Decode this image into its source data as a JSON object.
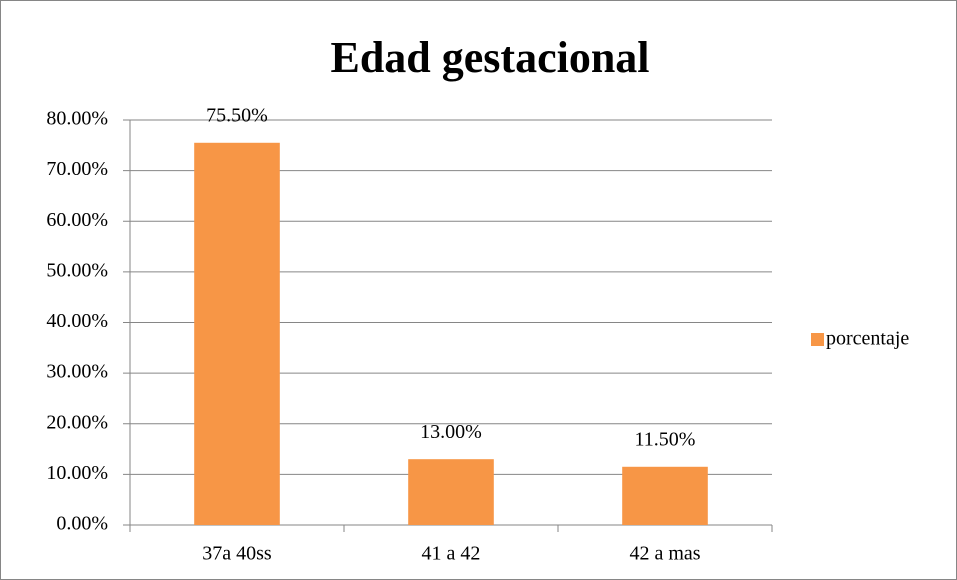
{
  "chart_data": {
    "type": "bar",
    "title": "Edad gestacional",
    "categories": [
      "37a 40ss",
      "41 a 42",
      "42 a mas"
    ],
    "series": [
      {
        "name": "porcentaje",
        "color": "#f79646",
        "values": [
          75.5,
          13,
          11.5
        ],
        "value_labels": [
          "75.50%",
          "13.00%",
          "11.50%"
        ]
      }
    ],
    "ylim": [
      0,
      80
    ],
    "yticks": [
      {
        "value": 0,
        "label": "0.00%"
      },
      {
        "value": 10,
        "label": "10.00%"
      },
      {
        "value": 20,
        "label": "20.00%"
      },
      {
        "value": 30,
        "label": "30.00%"
      },
      {
        "value": 40,
        "label": "40.00%"
      },
      {
        "value": 50,
        "label": "50.00%"
      },
      {
        "value": 60,
        "label": "60.00%"
      },
      {
        "value": 70,
        "label": "70.00%"
      },
      {
        "value": 80,
        "label": "80.00%"
      }
    ],
    "grid": true,
    "legend": "right"
  }
}
